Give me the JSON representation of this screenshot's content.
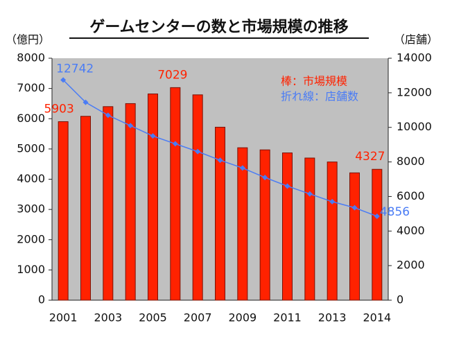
{
  "chart_data": {
    "type": "bar_line",
    "title": "ゲームセンターの数と市場規模の推移",
    "y_label": "（億円）",
    "y2_label": "（店舗）",
    "categories": [
      "2001",
      null,
      "2003",
      null,
      "2005",
      null,
      "2007",
      null,
      "2009",
      null,
      "2011",
      null,
      "2013",
      null,
      "2014"
    ],
    "series": [
      {
        "name": "棒：市場規模",
        "color": "#ff2200",
        "kind": "bar",
        "axis": "y",
        "values": [
          5903,
          6080,
          6400,
          6500,
          6820,
          7029,
          6790,
          5720,
          5040,
          4970,
          4870,
          4700,
          4570,
          4210,
          4327
        ],
        "value_labels": [
          "5903",
          null,
          null,
          null,
          null,
          "7029",
          null,
          null,
          null,
          null,
          null,
          null,
          null,
          null,
          "4327"
        ]
      },
      {
        "name": "折れ線：店舗数",
        "color": "#4a7cf5",
        "kind": "line",
        "axis": "y2",
        "values": [
          12742,
          11450,
          10700,
          10100,
          9500,
          9050,
          8600,
          8100,
          7650,
          7100,
          6600,
          6150,
          5700,
          5350,
          4856
        ],
        "value_labels": [
          "12742",
          null,
          null,
          null,
          null,
          null,
          null,
          null,
          null,
          null,
          null,
          null,
          null,
          null,
          "4856"
        ]
      }
    ],
    "ylim": [
      0,
      8000
    ],
    "yticks": [
      0,
      1000,
      2000,
      3000,
      4000,
      5000,
      6000,
      7000,
      8000
    ],
    "y2lim": [
      0,
      14000
    ],
    "y2ticks": [
      0,
      2000,
      4000,
      6000,
      8000,
      10000,
      12000,
      14000
    ]
  }
}
